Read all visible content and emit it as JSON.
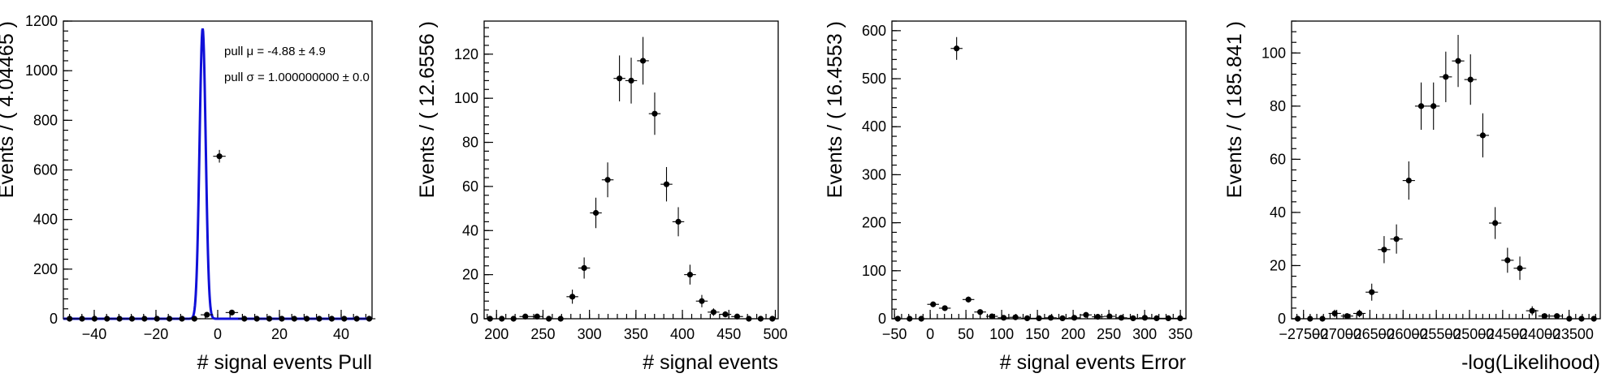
{
  "chart_data": [
    {
      "type": "scatter",
      "xlabel": "# signal events Pull",
      "ylabel": "Events / ( 4.04465 )",
      "xlim": [
        -50,
        50
      ],
      "ylim": [
        0,
        1200
      ],
      "xticks": [
        -40,
        -20,
        0,
        20,
        40
      ],
      "xtick_labels": [
        "−40",
        "−20",
        "0",
        "20",
        "40"
      ],
      "yticks": [
        0,
        200,
        400,
        600,
        800,
        1000,
        1200
      ],
      "ytick_labels": [
        "0",
        "200",
        "400",
        "600",
        "800",
        "1000",
        "1200"
      ],
      "bin_width": 4.04465,
      "x": [
        -47.98,
        -43.94,
        -39.9,
        -35.85,
        -31.81,
        -27.76,
        -23.72,
        -19.67,
        -15.63,
        -11.58,
        -7.54,
        -3.5,
        0.55,
        4.59,
        8.64,
        12.68,
        16.73,
        20.77,
        24.82,
        28.86,
        32.9,
        36.95,
        40.99,
        45.04,
        49.08
      ],
      "y": [
        0,
        0,
        0,
        0,
        0,
        0,
        0,
        0,
        0,
        0,
        0,
        16,
        655,
        25,
        0,
        0,
        0,
        0,
        0,
        0,
        0,
        0,
        0,
        0,
        0
      ],
      "yerr": [
        0,
        0,
        0,
        0,
        0,
        0,
        0,
        0,
        0,
        0,
        0,
        4,
        25.6,
        5,
        0,
        0,
        0,
        0,
        0,
        0,
        0,
        0,
        0,
        0,
        0
      ],
      "fit": {
        "mean": -4.88,
        "sigma": 1.0,
        "peak": 1170
      },
      "legend": [
        "pull μ = -4.88 ± 4.9",
        "pull σ =  1.000000000 ± 0.0"
      ],
      "legend_placement": "top-right",
      "grid": false
    },
    {
      "type": "scatter",
      "xlabel": "# signal events",
      "ylabel": "Events / ( 12.6556 )",
      "xlim": [
        186.68,
        503.07
      ],
      "ylim": [
        0,
        135
      ],
      "xticks": [
        200,
        250,
        300,
        350,
        400,
        450,
        500
      ],
      "xtick_labels": [
        "200",
        "250",
        "300",
        "350",
        "400",
        "450",
        "500"
      ],
      "yticks": [
        0,
        20,
        40,
        60,
        80,
        100,
        120
      ],
      "ytick_labels": [
        "0",
        "20",
        "40",
        "60",
        "80",
        "100",
        "120"
      ],
      "bin_width": 12.6556,
      "x": [
        193.0,
        205.7,
        218.3,
        231.0,
        243.7,
        256.3,
        269.0,
        281.6,
        294.3,
        306.9,
        319.6,
        332.3,
        344.9,
        357.6,
        370.2,
        382.9,
        395.6,
        408.2,
        420.9,
        433.5,
        446.2,
        458.9,
        471.5,
        484.2,
        496.8
      ],
      "y": [
        0,
        0,
        0,
        1,
        1,
        0,
        0,
        10,
        23,
        48,
        63,
        109,
        108,
        117,
        93,
        61,
        44,
        20,
        8,
        3,
        2,
        1,
        0,
        0,
        0
      ],
      "yerr": [
        0,
        0,
        0,
        1,
        1,
        0,
        0,
        3.2,
        4.8,
        6.9,
        7.9,
        10.4,
        10.4,
        10.8,
        9.6,
        7.8,
        6.6,
        4.5,
        2.8,
        1.7,
        1.4,
        1,
        0,
        0,
        0
      ],
      "grid": false
    },
    {
      "type": "scatter",
      "xlabel": "# signal events Error",
      "ylabel": "Events / ( 16.4553 )",
      "xlim": [
        -53.53,
        357.85
      ],
      "ylim": [
        0,
        620
      ],
      "xticks": [
        -50,
        0,
        50,
        100,
        150,
        200,
        250,
        300,
        350
      ],
      "xtick_labels": [
        "−50",
        "0",
        "50",
        "100",
        "150",
        "200",
        "250",
        "300",
        "350"
      ],
      "yticks": [
        0,
        100,
        200,
        300,
        400,
        500,
        600
      ],
      "ytick_labels": [
        "0",
        "100",
        "200",
        "300",
        "400",
        "500",
        "600"
      ],
      "bin_width": 16.4553,
      "x": [
        -45.3,
        -28.8,
        -12.4,
        4.1,
        20.5,
        37.0,
        53.5,
        69.9,
        86.4,
        102.8,
        119.3,
        135.7,
        152.2,
        168.7,
        185.1,
        201.6,
        218.0,
        234.5,
        250.9,
        267.4,
        283.9,
        300.3,
        316.8,
        333.2,
        349.7
      ],
      "y": [
        0,
        0,
        0,
        30,
        22,
        563,
        40,
        14,
        5,
        2,
        3,
        1,
        1,
        2,
        1,
        2,
        8,
        4,
        5,
        2,
        1,
        2,
        1,
        1,
        1
      ],
      "yerr": [
        0,
        0,
        0,
        5.5,
        4.7,
        23.7,
        6.3,
        3.7,
        2.2,
        1.4,
        1.7,
        1,
        1,
        1.4,
        1,
        1.4,
        2.8,
        2,
        2.2,
        1.4,
        1,
        1.4,
        1,
        1,
        1
      ],
      "grid": false
    },
    {
      "type": "scatter",
      "xlabel": "-log(Likelihood)",
      "ylabel": "Events / ( 185.841 )",
      "xlim": [
        -27680,
        -23030
      ],
      "ylim": [
        0,
        112
      ],
      "xticks": [
        -27500,
        -27000,
        -26500,
        -26000,
        -25500,
        -25000,
        -24500,
        -24000,
        -23500
      ],
      "xtick_labels": [
        "−27500",
        "−27000",
        "−26500",
        "−26000",
        "−25500",
        "−25000",
        "−24500",
        "−24000",
        "−23500"
      ],
      "yticks": [
        0,
        20,
        40,
        60,
        80,
        100
      ],
      "ytick_labels": [
        "0",
        "20",
        "40",
        "60",
        "80",
        "100"
      ],
      "bin_width": 185.841,
      "x": [
        -27587,
        -27401,
        -27215,
        -27030,
        -26844,
        -26658,
        -26472,
        -26286,
        -26100,
        -25914,
        -25728,
        -25542,
        -25357,
        -25171,
        -24985,
        -24799,
        -24613,
        -24427,
        -24241,
        -24055,
        -23869,
        -23683,
        -23497,
        -23312,
        -23126
      ],
      "y": [
        0,
        0,
        0,
        2,
        1,
        2,
        10,
        26,
        30,
        52,
        80,
        80,
        91,
        97,
        90,
        69,
        36,
        22,
        19,
        3,
        1,
        1,
        0,
        0,
        0
      ],
      "yerr": [
        0,
        0,
        0,
        1.4,
        1,
        1.4,
        3.2,
        5.1,
        5.5,
        7.2,
        8.9,
        8.9,
        9.5,
        9.8,
        9.5,
        8.3,
        6,
        4.7,
        4.4,
        1.7,
        1,
        1,
        0,
        0,
        0
      ],
      "grid": false
    }
  ]
}
